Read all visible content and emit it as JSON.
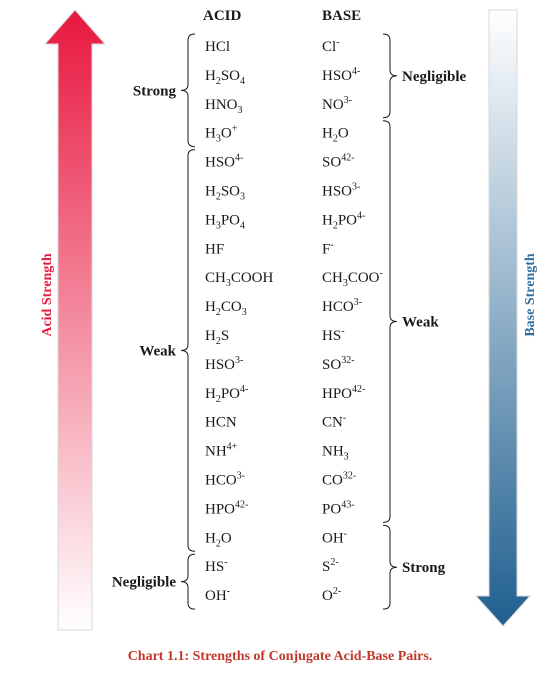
{
  "headers": {
    "acid": "ACID",
    "base": "BASE"
  },
  "colors": {
    "acid_arrow_top": "#e8173f",
    "acid_arrow_bottom": "#ffffff",
    "base_arrow_top": "#ffffff",
    "base_arrow_bottom": "#1f5f8f",
    "caption": "#c0392b",
    "acid_label": "#e8173f",
    "base_label": "#2f6fa0"
  },
  "acid_arrow_label": "Acid Strength",
  "base_arrow_label": "Base Strength",
  "pairs": [
    {
      "acid": "HCl",
      "base": "Cl-"
    },
    {
      "acid": "H2SO4",
      "base": "HSO4-"
    },
    {
      "acid": "HNO3",
      "base": "NO3-"
    },
    {
      "acid": "H3O+",
      "base": "H2O"
    },
    {
      "acid": "HSO4-",
      "base": "SO42-"
    },
    {
      "acid": "H2SO3",
      "base": "HSO3-"
    },
    {
      "acid": "H3PO4",
      "base": "H2PO4-"
    },
    {
      "acid": "HF",
      "base": "F-"
    },
    {
      "acid": "CH3COOH",
      "base": "CH3COO-"
    },
    {
      "acid": "H2CO3",
      "base": "HCO3-"
    },
    {
      "acid": "H2S",
      "base": "HS-"
    },
    {
      "acid": "HSO3-",
      "base": "SO32-"
    },
    {
      "acid": "H2PO4-",
      "base": "HPO42-"
    },
    {
      "acid": "HCN",
      "base": "CN-"
    },
    {
      "acid": "NH4+",
      "base": "NH3"
    },
    {
      "acid": "HCO3-",
      "base": "CO32-"
    },
    {
      "acid": "HPO42-",
      "base": "PO43-"
    },
    {
      "acid": "H2O",
      "base": "OH-"
    },
    {
      "acid": "HS-",
      "base": "S2-"
    },
    {
      "acid": "OH-",
      "base": "O2-"
    }
  ],
  "acid_groups": [
    {
      "label": "Strong",
      "from": 0,
      "to": 3
    },
    {
      "label": "Weak",
      "from": 4,
      "to": 17
    },
    {
      "label": "Negligible",
      "from": 18,
      "to": 19
    }
  ],
  "base_groups": [
    {
      "label": "Negligible",
      "from": 0,
      "to": 2
    },
    {
      "label": "Weak",
      "from": 3,
      "to": 16
    },
    {
      "label": "Strong",
      "from": 17,
      "to": 19
    }
  ],
  "caption": "Chart 1.1: Strengths of Conjugate Acid-Base Pairs."
}
